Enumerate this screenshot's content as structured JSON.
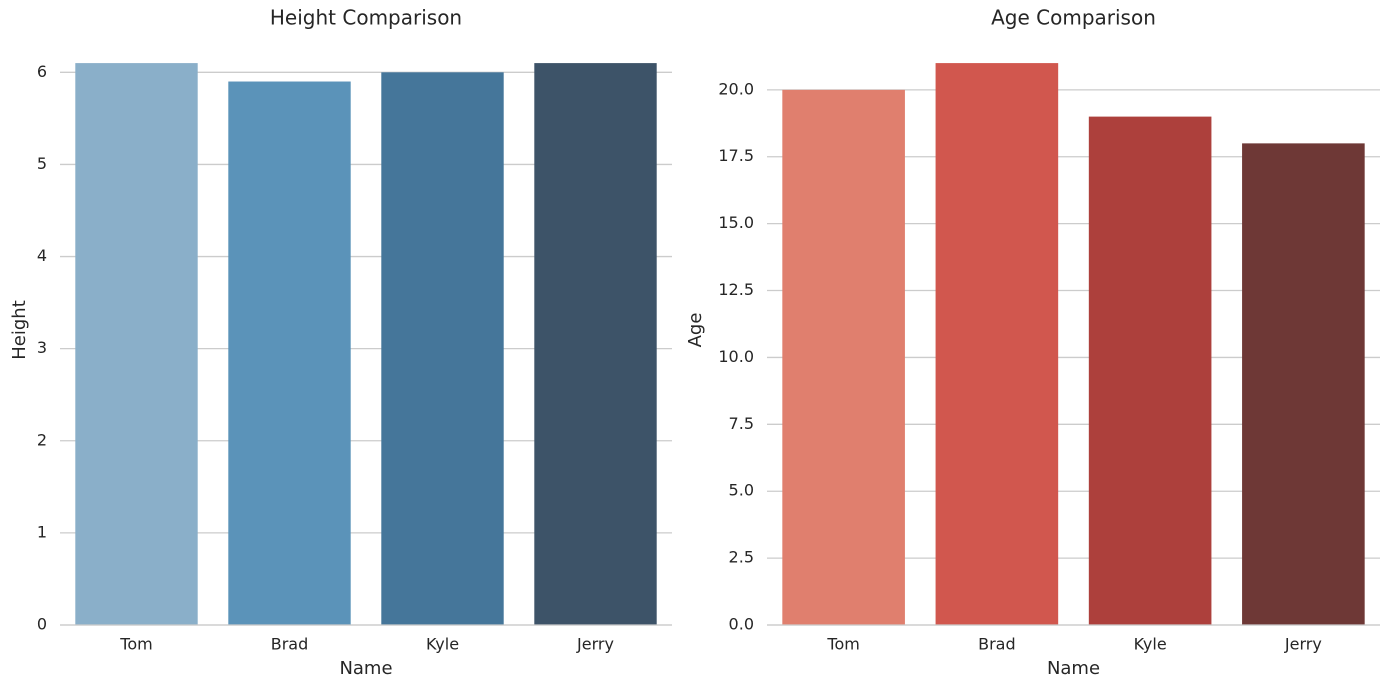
{
  "chart_data": [
    {
      "type": "bar",
      "title": "Height Comparison",
      "xlabel": "Name",
      "ylabel": "Height",
      "categories": [
        "Tom",
        "Brad",
        "Kyle",
        "Jerry"
      ],
      "values": [
        6.1,
        5.9,
        6.0,
        6.1
      ],
      "colors": [
        "#8aafc9",
        "#5b93b9",
        "#45769a",
        "#3d5368"
      ],
      "ylim": [
        0,
        6.405
      ],
      "yticks": [
        0,
        1,
        2,
        3,
        4,
        5,
        6
      ],
      "grid": true
    },
    {
      "type": "bar",
      "title": "Age Comparison",
      "xlabel": "Name",
      "ylabel": "Age",
      "categories": [
        "Tom",
        "Brad",
        "Kyle",
        "Jerry"
      ],
      "values": [
        20,
        21,
        19,
        18
      ],
      "colors": [
        "#e07f6e",
        "#d1574e",
        "#ad403c",
        "#6e3836"
      ],
      "ylim": [
        0,
        22.05
      ],
      "yticks": [
        {
          "value": 0,
          "label": "0.0"
        },
        {
          "value": 2.5,
          "label": "2.5"
        },
        {
          "value": 5,
          "label": "5.0"
        },
        {
          "value": 7.5,
          "label": "7.5"
        },
        {
          "value": 10,
          "label": "10.0"
        },
        {
          "value": 12.5,
          "label": "12.5"
        },
        {
          "value": 15,
          "label": "15.0"
        },
        {
          "value": 17.5,
          "label": "17.5"
        },
        {
          "value": 20,
          "label": "20.0"
        }
      ],
      "grid": true
    }
  ]
}
